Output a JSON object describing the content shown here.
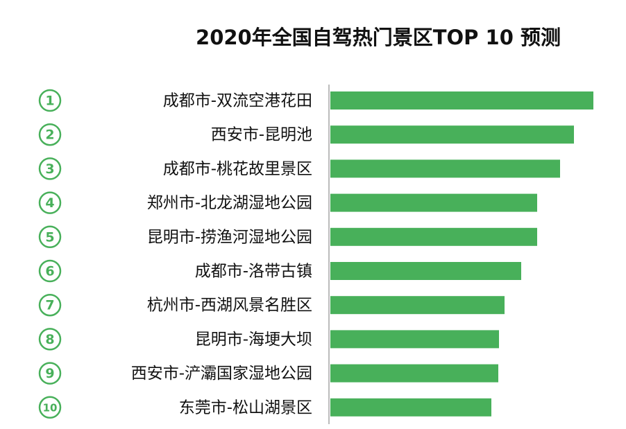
{
  "chart_data": {
    "type": "bar",
    "orientation": "horizontal",
    "title": "2020年全国自驾热门景区TOP 10 预测",
    "ranks": [
      1,
      2,
      3,
      4,
      5,
      6,
      7,
      8,
      9,
      10
    ],
    "categories": [
      "成都市-双流空港花田",
      "西安市-昆明池",
      "成都市-桃花故里景区",
      "郑州市-北龙湖湿地公园",
      "昆明市-捞渔河湿地公园",
      "成都市-洛带古镇",
      "杭州市-西湖风景名胜区",
      "昆明市-海埂大坝",
      "西安市-浐灞国家湿地公园",
      "东莞市-松山湖景区"
    ],
    "values": [
      379,
      351,
      331,
      298,
      298,
      275,
      251,
      243,
      242,
      232
    ],
    "color": "#48b05a"
  }
}
